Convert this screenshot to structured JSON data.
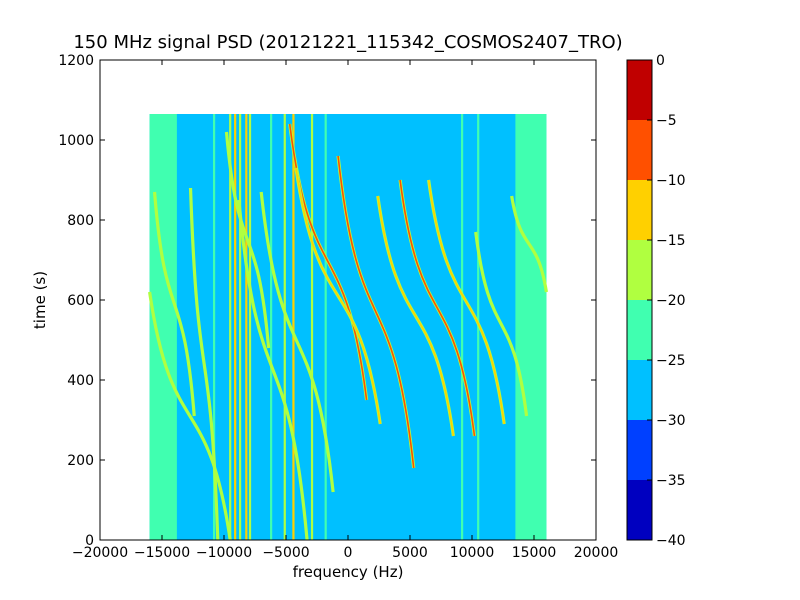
{
  "chart_data": {
    "type": "heatmap",
    "title": "150 MHz signal PSD (20121221_115342_COSMOS2407_TRO)",
    "xlabel": "frequency (Hz)",
    "ylabel": "time (s)",
    "xlim": [
      -20000,
      20000
    ],
    "ylim": [
      0,
      1200
    ],
    "xticks": [
      -20000,
      -15000,
      -10000,
      -5000,
      0,
      5000,
      10000,
      15000,
      20000
    ],
    "yticks": [
      0,
      200,
      400,
      600,
      800,
      1000,
      1200
    ],
    "xtick_labels": [
      "−20000",
      "−15000",
      "−10000",
      "−5000",
      "0",
      "5000",
      "10000",
      "15000",
      "20000"
    ],
    "ytick_labels": [
      "0",
      "200",
      "400",
      "600",
      "800",
      "1000",
      "1200"
    ],
    "data_extent": {
      "freq": [
        -16000,
        16000
      ],
      "time": [
        0,
        1065
      ]
    },
    "background_level": -27.5,
    "edge_level": -22.5,
    "edge_bands": [
      [
        -16000,
        -13800
      ],
      [
        13500,
        16000
      ]
    ],
    "colorbar": {
      "label": "",
      "ticks": [
        0,
        -5,
        -10,
        -15,
        -20,
        -25,
        -30,
        -35,
        -40
      ],
      "tick_labels": [
        "0",
        "−5",
        "−10",
        "−15",
        "−20",
        "−25",
        "−30",
        "−35",
        "−40"
      ],
      "levels": [
        {
          "range": [
            -40,
            -35
          ],
          "color": "#0000c0"
        },
        {
          "range": [
            -35,
            -30
          ],
          "color": "#0040ff"
        },
        {
          "range": [
            -30,
            -25
          ],
          "color": "#00c0ff"
        },
        {
          "range": [
            -25,
            -20
          ],
          "color": "#40ffb0"
        },
        {
          "range": [
            -20,
            -15
          ],
          "color": "#b0ff40"
        },
        {
          "range": [
            -15,
            -10
          ],
          "color": "#ffd000"
        },
        {
          "range": [
            -10,
            -5
          ],
          "color": "#ff5000"
        },
        {
          "range": [
            -5,
            0
          ],
          "color": "#c00000"
        }
      ]
    },
    "vertical_lines": [
      {
        "freq": -10800,
        "level": -22.5
      },
      {
        "freq": -9500,
        "level": -17.5
      },
      {
        "freq": -9100,
        "level": -12.5
      },
      {
        "freq": -8700,
        "level": -17.5
      },
      {
        "freq": -8200,
        "level": -12.5
      },
      {
        "freq": -7900,
        "level": -17.5
      },
      {
        "freq": -6200,
        "level": -22.5
      },
      {
        "freq": -5100,
        "level": -17.5
      },
      {
        "freq": -4400,
        "level": -12.5
      },
      {
        "freq": -2900,
        "level": -17.5
      },
      {
        "freq": -1800,
        "level": -22.5
      },
      {
        "freq": 9200,
        "level": -22.5
      },
      {
        "freq": 10500,
        "level": -22.5
      }
    ],
    "doppler_tracks": [
      {
        "start": [
          -15600,
          870
        ],
        "end": [
          -12400,
          310
        ],
        "level": -17.5
      },
      {
        "start": [
          -16000,
          620
        ],
        "end": [
          -9500,
          0
        ],
        "level": -17.5
      },
      {
        "start": [
          -12700,
          880
        ],
        "end": [
          -10500,
          0
        ],
        "level": -17.5
      },
      {
        "start": [
          -9800,
          1020
        ],
        "end": [
          -6400,
          480
        ],
        "level": -17.5
      },
      {
        "start": [
          -8800,
          850
        ],
        "end": [
          -3300,
          0
        ],
        "level": -17.5
      },
      {
        "start": [
          -7000,
          870
        ],
        "end": [
          -1200,
          120
        ],
        "level": -17.5
      },
      {
        "start": [
          -4700,
          1040
        ],
        "end": [
          1500,
          350
        ],
        "level": -7.5
      },
      {
        "start": [
          -4200,
          930
        ],
        "end": [
          2600,
          290
        ],
        "level": -12.5
      },
      {
        "start": [
          -800,
          960
        ],
        "end": [
          5300,
          180
        ],
        "level": -7.5
      },
      {
        "start": [
          2400,
          860
        ],
        "end": [
          8500,
          260
        ],
        "level": -12.5
      },
      {
        "start": [
          4200,
          900
        ],
        "end": [
          10200,
          260
        ],
        "level": -7.5
      },
      {
        "start": [
          6500,
          900
        ],
        "end": [
          12600,
          290
        ],
        "level": -12.5
      },
      {
        "start": [
          10300,
          770
        ],
        "end": [
          14400,
          310
        ],
        "level": -17.5
      },
      {
        "start": [
          13200,
          860
        ],
        "end": [
          16000,
          620
        ],
        "level": -17.5
      }
    ]
  }
}
